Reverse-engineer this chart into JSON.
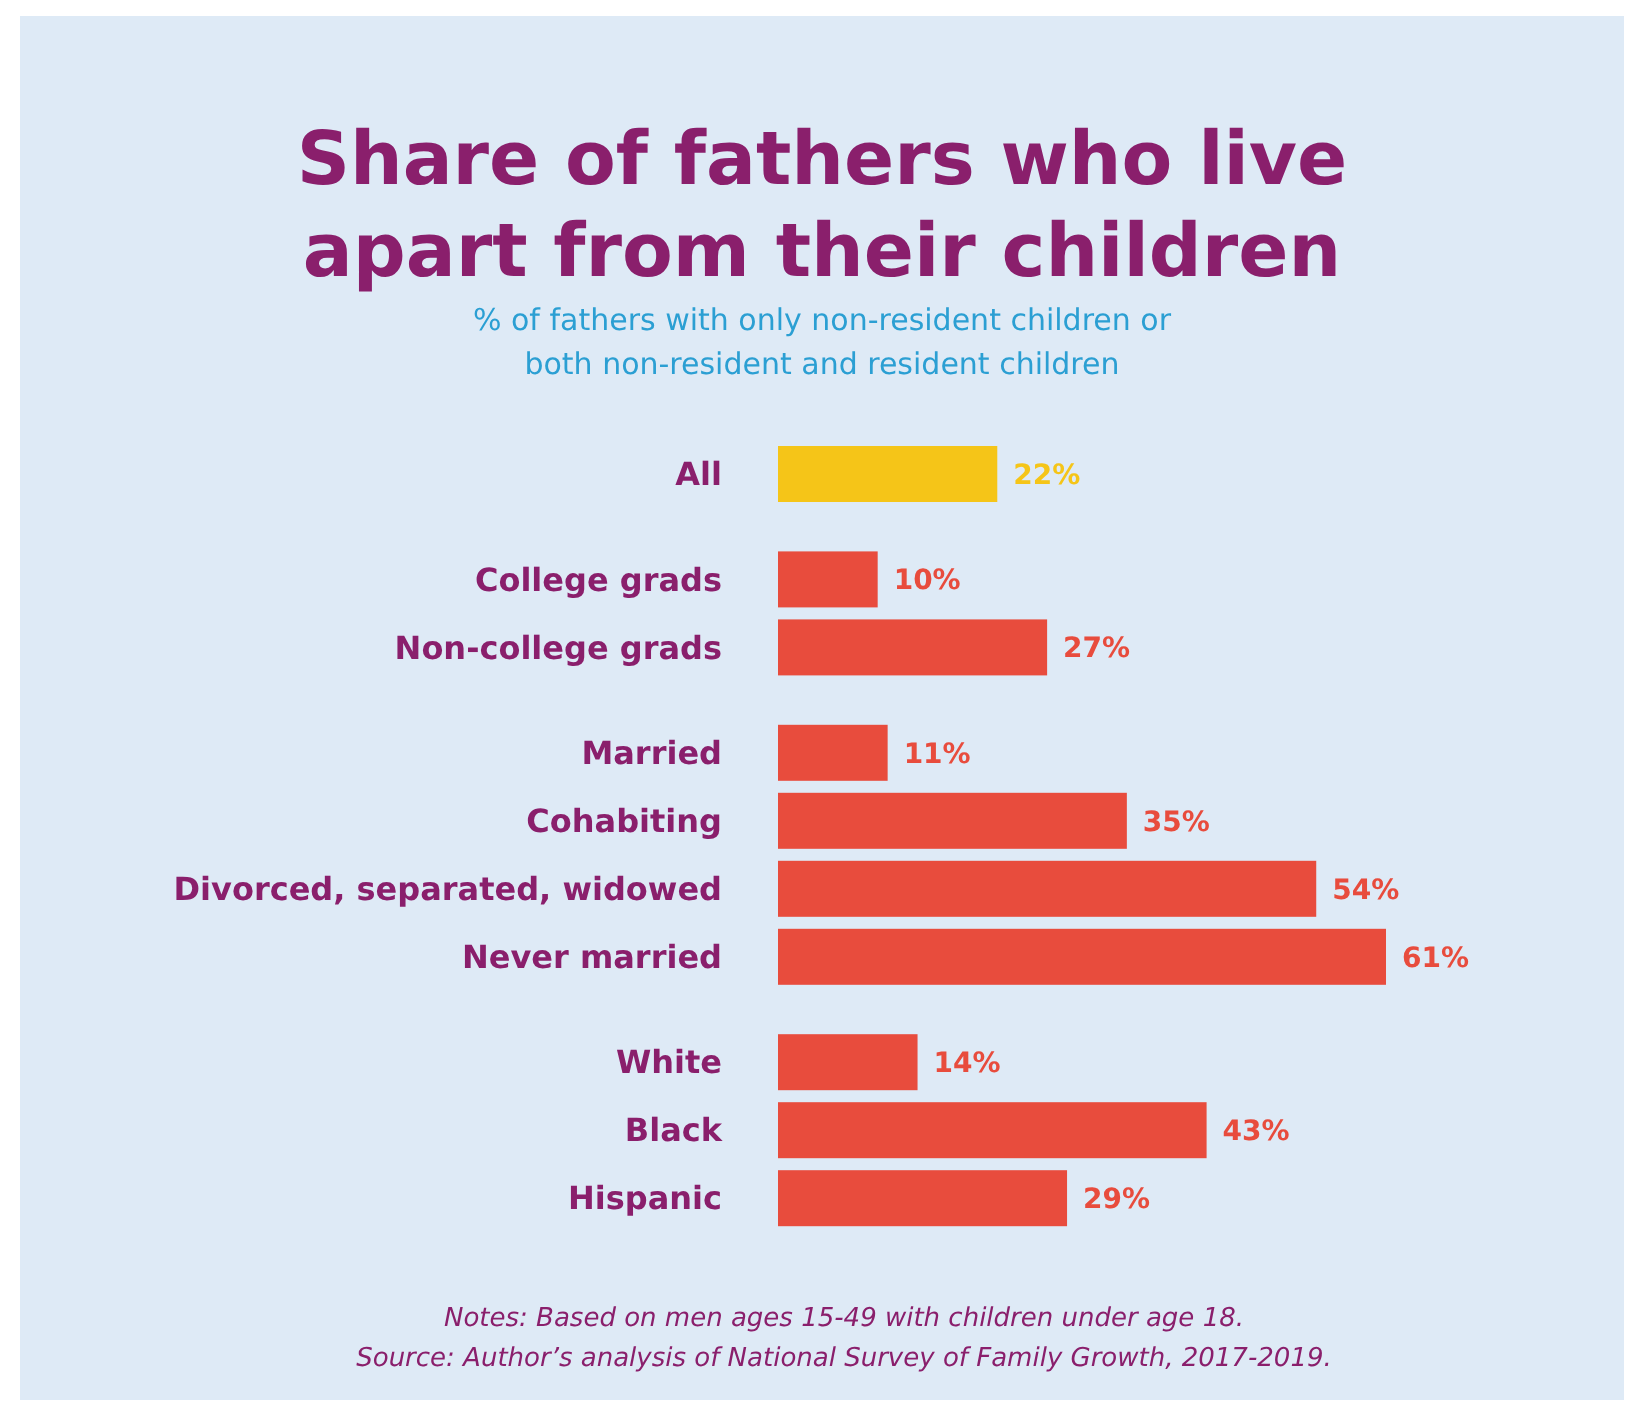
{
  "chart_data": {
    "type": "bar",
    "orientation": "horizontal",
    "title": "Share of fathers who live apart from their children",
    "subtitle": "% of fathers with only non-resident children or both non-resident and resident children",
    "categories": [
      "All",
      null,
      "College grads",
      "Non-college grads",
      null,
      "Married",
      "Cohabiting",
      "Divorced, separated, widowed",
      "Never married",
      null,
      "White",
      "Black",
      "Hispanic"
    ],
    "values": [
      22,
      null,
      10,
      27,
      null,
      11,
      35,
      54,
      61,
      null,
      14,
      43,
      29
    ],
    "value_labels": [
      "22%",
      null,
      "10%",
      "27%",
      null,
      "11%",
      "35%",
      "54%",
      "61%",
      null,
      "14%",
      "43%",
      "29%"
    ],
    "colors": [
      "#f5c518",
      null,
      "#e84c3d",
      "#e84c3d",
      null,
      "#e84c3d",
      "#e84c3d",
      "#e84c3d",
      "#e84c3d",
      null,
      "#e84c3d",
      "#e84c3d",
      "#e84c3d"
    ],
    "annotations": [
      "Notes: Based on men ages 15-49 with children under age 18.",
      "Source: Author’s analysis of National Survey of Family Growth, 2017-2019."
    ]
  }
}
